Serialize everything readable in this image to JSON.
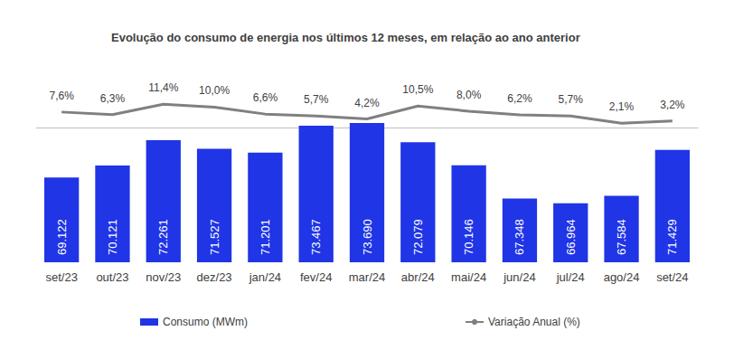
{
  "chart_data": {
    "type": "bar",
    "title": "Evolução do consumo de energia nos últimos 12 meses, em relação ao ano anterior",
    "categories": [
      "set/23",
      "out/23",
      "nov/23",
      "dez/23",
      "jan/24",
      "fev/24",
      "mar/24",
      "abr/24",
      "mai/24",
      "jun/24",
      "jul/24",
      "ago/24",
      "set/24"
    ],
    "series": [
      {
        "name": "Consumo (MWm)",
        "type": "bar",
        "color": "#1f35e6",
        "values": [
          69122,
          70121,
          72261,
          71527,
          71201,
          73467,
          73690,
          72079,
          70146,
          67348,
          66964,
          67584,
          71429
        ],
        "value_labels": [
          "69.122",
          "70.121",
          "72.261",
          "71.527",
          "71.201",
          "73.467",
          "73.690",
          "72.079",
          "70.146",
          "67.348",
          "66.964",
          "67.584",
          "71.429"
        ]
      },
      {
        "name": "Variação Anual (%)",
        "type": "line",
        "axis": "y2",
        "color": "#808080",
        "values": [
          7.6,
          6.3,
          11.4,
          10.0,
          6.6,
          5.7,
          4.2,
          10.5,
          8.0,
          6.2,
          5.7,
          2.1,
          3.2
        ],
        "value_labels": [
          "7,6%",
          "6,3%",
          "11,4%",
          "10,0%",
          "6,6%",
          "5,7%",
          "4,2%",
          "10,5%",
          "8,0%",
          "6,2%",
          "5,7%",
          "2,1%",
          "3,2%"
        ]
      }
    ],
    "ylim": [
      62000,
      80000
    ],
    "y2lim": [
      -66,
      39
    ],
    "data_labels": true,
    "legend": "bottom",
    "tick_labels": "x",
    "grid": false
  }
}
